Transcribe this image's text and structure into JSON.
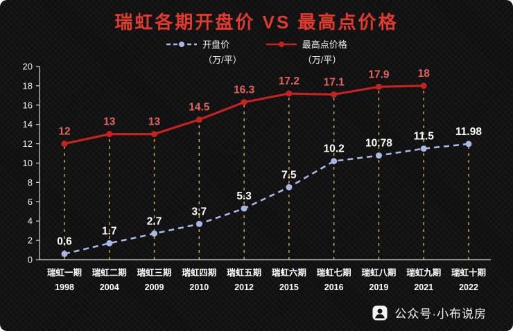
{
  "chart_data": {
    "type": "line",
    "title": "瑞虹各期开盘价 VS 最高点价格",
    "categories": [
      "瑞虹一期",
      "瑞虹二期",
      "瑞虹三期",
      "瑞虹四期",
      "瑞虹五期",
      "瑞虹六期",
      "瑞虹七期",
      "瑞虹八期",
      "瑞虹九期",
      "瑞虹十期"
    ],
    "years": [
      "1998",
      "2004",
      "2009",
      "2010",
      "2012",
      "2015",
      "2016",
      "2019",
      "2021",
      "2022"
    ],
    "series": [
      {
        "name": "开盘价",
        "unit": "（万/平）",
        "color": "#a9b7e8",
        "label_color": "#ffffff",
        "style": "dashed",
        "values": [
          0.6,
          1.7,
          2.7,
          3.7,
          5.3,
          7.5,
          10.2,
          10.78,
          11.5,
          11.98
        ]
      },
      {
        "name": "最高点价格",
        "unit": "（万/平）",
        "color": "#c62320",
        "label_color": "#e4625a",
        "style": "solid",
        "values": [
          12,
          13,
          13,
          14.5,
          16.3,
          17.2,
          17.1,
          17.9,
          18,
          null
        ]
      }
    ],
    "ylim": [
      0,
      20
    ],
    "ytick_step": 2,
    "legend_position": "top",
    "gridlines": "vertical-dashed",
    "colors": {
      "title": "#e23a2b",
      "grid": "#c9b45c",
      "axis": "#d9d9d9",
      "tick_text": "#f2f2f2",
      "xlabel_text": "#ffffff"
    }
  },
  "footer": {
    "text": "公众号·小布说房"
  }
}
